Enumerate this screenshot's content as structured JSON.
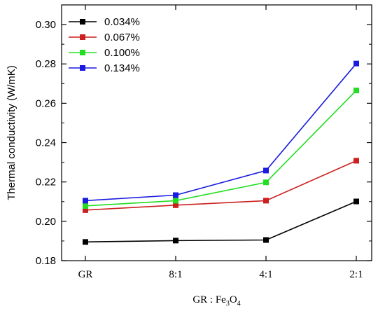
{
  "chart_data": {
    "type": "line",
    "categories": [
      "GR",
      "8:1",
      "4:1",
      "2:1"
    ],
    "xlabel": {
      "prefix": "GR : Fe",
      "sub1": "3",
      "mid": "O",
      "sub2": "4"
    },
    "ylabel": "Thermal conductivity (W/mK)",
    "ylim": [
      0.18,
      0.31
    ],
    "yticks": [
      "0.18",
      "0.20",
      "0.22",
      "0.24",
      "0.26",
      "0.28",
      "0.30"
    ],
    "legend_position": "top-left",
    "grid": false,
    "series": [
      {
        "name": "0.034%",
        "color": "#000000",
        "values": [
          0.1895,
          0.1902,
          0.1905,
          0.2101
        ]
      },
      {
        "name": "0.067%",
        "color": "#cc1f1f",
        "values": [
          0.2057,
          0.2082,
          0.2105,
          0.2308
        ]
      },
      {
        "name": "0.100%",
        "color": "#22dd22",
        "values": [
          0.2078,
          0.2105,
          0.2198,
          0.2665
        ]
      },
      {
        "name": "0.134%",
        "color": "#1a1ae0",
        "values": [
          0.2105,
          0.2133,
          0.2258,
          0.2802
        ]
      }
    ]
  }
}
